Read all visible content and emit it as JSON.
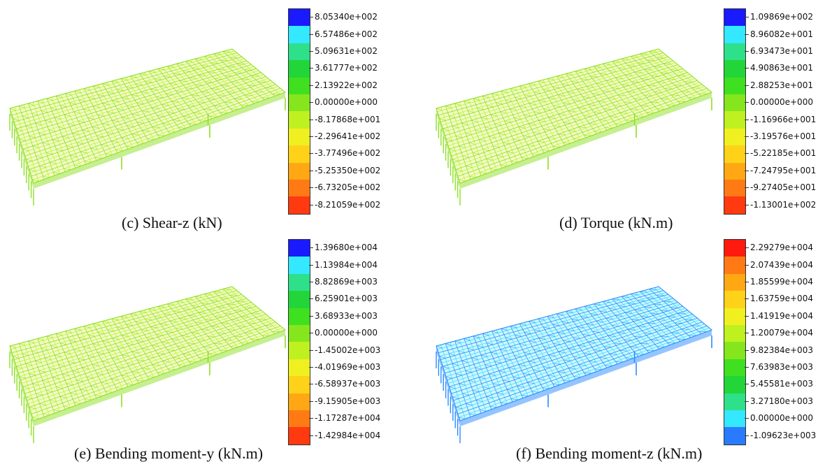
{
  "panels": [
    {
      "id": "c",
      "caption": "(c) Shear-z (kN)",
      "model_color": "#8de020",
      "model_color2": "#c6f02a",
      "legend": {
        "labels": [
          "8.05340e+002",
          "6.57486e+002",
          "5.09631e+002",
          "3.61777e+002",
          "2.13922e+002",
          "0.00000e+000",
          "-8.17868e+001",
          "-2.29641e+002",
          "-3.77496e+002",
          "-5.25350e+002",
          "-6.73205e+002",
          "-8.21059e+002"
        ],
        "colors": [
          "#1a1aff",
          "#33e8ff",
          "#2ee08a",
          "#22d63a",
          "#3fe020",
          "#86e61e",
          "#bff020",
          "#f0f020",
          "#ffd21a",
          "#ffa814",
          "#ff7a14",
          "#ff3a10"
        ]
      }
    },
    {
      "id": "d",
      "caption": "(d) Torque (kN.m)",
      "model_color": "#8de020",
      "model_color2": "#c6f02a",
      "legend": {
        "labels": [
          "1.09869e+002",
          "8.96082e+001",
          "6.93473e+001",
          "4.90863e+001",
          "2.88253e+001",
          "0.00000e+000",
          "-1.16966e+001",
          "-3.19576e+001",
          "-5.22185e+001",
          "-7.24795e+001",
          "-9.27405e+001",
          "-1.13001e+002"
        ],
        "colors": [
          "#1a1aff",
          "#33e8ff",
          "#2ee08a",
          "#22d63a",
          "#3fe020",
          "#86e61e",
          "#bff020",
          "#f0f020",
          "#ffd21a",
          "#ffa814",
          "#ff7a14",
          "#ff3a10"
        ]
      }
    },
    {
      "id": "e",
      "caption": "(e) Bending moment-y (kN.m)",
      "model_color": "#8de020",
      "model_color2": "#c6f02a",
      "legend": {
        "labels": [
          "1.39680e+004",
          "1.13984e+004",
          "8.82869e+003",
          "6.25901e+003",
          "3.68933e+003",
          "0.00000e+000",
          "-1.45002e+003",
          "-4.01969e+003",
          "-6.58937e+003",
          "-9.15905e+003",
          "-1.17287e+004",
          "-1.42984e+004"
        ],
        "colors": [
          "#1a1aff",
          "#33e8ff",
          "#2ee08a",
          "#22d63a",
          "#3fe020",
          "#86e61e",
          "#bff020",
          "#f0f020",
          "#ffd21a",
          "#ffa814",
          "#ff7a14",
          "#ff3a10"
        ]
      }
    },
    {
      "id": "f",
      "caption": "(f) Bending moment-z (kN.m)",
      "model_color": "#2a8cff",
      "model_color2": "#3ce0ff",
      "legend": {
        "labels": [
          "2.29279e+004",
          "2.07439e+004",
          "1.85599e+004",
          "1.63759e+004",
          "1.41919e+004",
          "1.20079e+004",
          "9.82384e+003",
          "7.63983e+003",
          "5.45581e+003",
          "3.27180e+003",
          "0.00000e+000",
          "-1.09623e+003"
        ],
        "colors": [
          "#ff1a10",
          "#ff7a14",
          "#ffa814",
          "#ffd21a",
          "#f0f020",
          "#bff020",
          "#86e61e",
          "#3fe020",
          "#22d63a",
          "#2ee08a",
          "#33e8ff",
          "#2a7aff"
        ]
      }
    }
  ]
}
